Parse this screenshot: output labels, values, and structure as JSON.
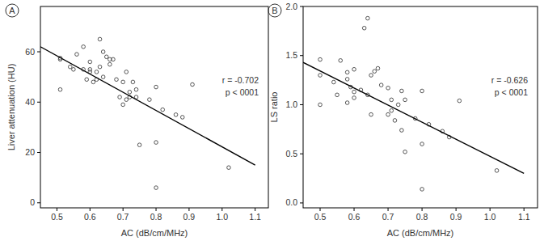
{
  "chart_data": [
    {
      "type": "scatter",
      "title": "A",
      "x_label": "AC (dB/cm/MHz)",
      "y_label": "Liver attenuation (HU)",
      "annotations": [
        "r = -0.702",
        "p < 0001"
      ],
      "xlim": [
        0.45,
        1.14
      ],
      "ylim": [
        -2,
        78
      ],
      "xticks": [
        0.5,
        0.6,
        0.7,
        0.8,
        0.9,
        {
          "value": 1.0,
          "label": "1.0"
        },
        1.1
      ],
      "yticks": [
        0,
        20,
        40,
        60
      ],
      "grid": false,
      "series": [
        {
          "type": "scatter",
          "marker": "circle",
          "color": "#444444",
          "x": [
            0.51,
            0.51,
            0.51,
            0.54,
            0.55,
            0.56,
            0.58,
            0.58,
            0.59,
            0.6,
            0.6,
            0.6,
            0.61,
            0.62,
            0.62,
            0.63,
            0.63,
            0.64,
            0.64,
            0.65,
            0.66,
            0.66,
            0.67,
            0.68,
            0.69,
            0.7,
            0.7,
            0.71,
            0.71,
            0.72,
            0.72,
            0.73,
            0.74,
            0.75,
            0.74,
            0.78,
            0.8,
            0.8,
            0.8,
            0.82,
            0.86,
            0.88,
            0.91,
            1.02
          ],
          "values": [
            57.5,
            57,
            45,
            54,
            53,
            59,
            62,
            53,
            49,
            53,
            52,
            56,
            48,
            52,
            49,
            65,
            54,
            50,
            60,
            58,
            57,
            55,
            57,
            49,
            42,
            48,
            39,
            52,
            41,
            42,
            44,
            48,
            42,
            23,
            45,
            41,
            46,
            24,
            6,
            37,
            35,
            34,
            47,
            14
          ]
        },
        {
          "type": "line",
          "line_style": "solid",
          "color": "#000000",
          "x": [
            0.45,
            1.1
          ],
          "values": [
            62,
            15
          ]
        }
      ]
    },
    {
      "type": "scatter",
      "title": "B",
      "x_label": "AC (dB/cm/MHz)",
      "y_label": "LS ratio",
      "annotations": [
        "r = -0.626",
        "p < 0001"
      ],
      "xlim": [
        0.45,
        1.14
      ],
      "ylim": [
        -0.05,
        2.0
      ],
      "xticks": [
        0.5,
        0.6,
        0.7,
        0.8,
        0.9,
        {
          "value": 1.0,
          "label": "1.0"
        },
        1.1
      ],
      "yticks": [
        {
          "value": 0,
          "label": "0.0"
        },
        0.5,
        {
          "value": 1,
          "label": "1.0"
        },
        1.5,
        {
          "value": 2,
          "label": "2.0"
        }
      ],
      "grid": false,
      "series": [
        {
          "type": "scatter",
          "marker": "circle",
          "color": "#444444",
          "x": [
            0.5,
            0.5,
            0.5,
            0.54,
            0.55,
            0.56,
            0.58,
            0.58,
            0.58,
            0.59,
            0.6,
            0.6,
            0.6,
            0.62,
            0.63,
            0.64,
            0.64,
            0.65,
            0.65,
            0.66,
            0.67,
            0.68,
            0.7,
            0.7,
            0.71,
            0.71,
            0.72,
            0.73,
            0.74,
            0.74,
            0.75,
            0.75,
            0.78,
            0.8,
            0.8,
            0.8,
            0.82,
            0.86,
            0.88,
            0.91,
            1.02
          ],
          "values": [
            1.46,
            1.3,
            1.0,
            1.23,
            1.1,
            1.45,
            1.33,
            1.26,
            1.02,
            1.18,
            1.36,
            1.13,
            1.07,
            1.15,
            1.78,
            1.88,
            1.1,
            1.3,
            0.9,
            1.34,
            1.37,
            1.2,
            1.17,
            0.9,
            1.05,
            0.94,
            0.84,
            1.0,
            1.14,
            0.74,
            0.52,
            1.05,
            0.86,
            1.14,
            0.6,
            0.14,
            0.8,
            0.73,
            0.67,
            1.04,
            0.33
          ]
        },
        {
          "type": "line",
          "line_style": "solid",
          "color": "#000000",
          "x": [
            0.45,
            1.1
          ],
          "values": [
            1.43,
            0.3
          ]
        }
      ]
    }
  ]
}
